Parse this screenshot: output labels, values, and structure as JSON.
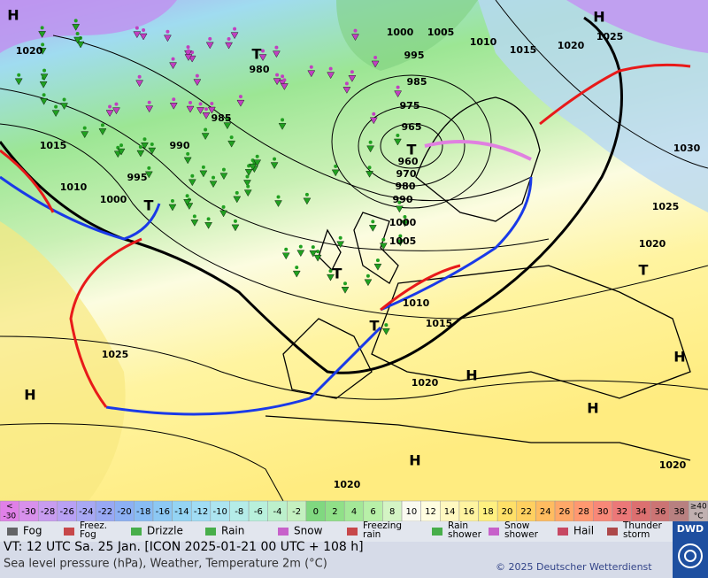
{
  "map": {
    "labels": [
      "H",
      "1020",
      "1015",
      "1010",
      "1000",
      "995",
      "990",
      "985",
      "980",
      "T",
      "1000",
      "1005",
      "995",
      "985",
      "975",
      "965",
      "T",
      "960",
      "970",
      "980",
      "990",
      "1000",
      "1005",
      "1010",
      "1015",
      "1010",
      "1015",
      "1020",
      "1025",
      "H",
      "1030",
      "1025",
      "1020",
      "T",
      "T",
      "T",
      "T",
      "1025",
      "H",
      "1020",
      "H",
      "H",
      "H",
      "H",
      "1020",
      "1020"
    ]
  },
  "color_scale": {
    "cells": [
      {
        "top": "<",
        "label": "-30",
        "color": "#e080e8"
      },
      {
        "label": "-30",
        "color": "#d890ec"
      },
      {
        "label": "-28",
        "color": "#c89cf0"
      },
      {
        "label": "-26",
        "color": "#b8a0f4"
      },
      {
        "label": "-24",
        "color": "#a8a8f4"
      },
      {
        "label": "-22",
        "color": "#98a8f4"
      },
      {
        "label": "-20",
        "color": "#8cb0f4"
      },
      {
        "label": "-18",
        "color": "#88bcf4"
      },
      {
        "label": "-16",
        "color": "#8cc8f4"
      },
      {
        "label": "-14",
        "color": "#94d4f4"
      },
      {
        "label": "-12",
        "color": "#a0dcf4"
      },
      {
        "label": "-10",
        "color": "#ace4f0"
      },
      {
        "label": "-8",
        "color": "#b4ece8"
      },
      {
        "label": "-6",
        "color": "#b8f0dc"
      },
      {
        "label": "-4",
        "color": "#bcf0cc"
      },
      {
        "label": "-2",
        "color": "#c4f0c0"
      },
      {
        "label": "0",
        "color": "#80d880"
      },
      {
        "label": "2",
        "color": "#90e088"
      },
      {
        "label": "4",
        "color": "#a4e898"
      },
      {
        "label": "6",
        "color": "#b8f0a8"
      },
      {
        "label": "8",
        "color": "#d4f4c4"
      },
      {
        "label": "10",
        "color": "#fafaf0"
      },
      {
        "label": "12",
        "color": "#fffde0"
      },
      {
        "label": "14",
        "color": "#fff8c0"
      },
      {
        "label": "16",
        "color": "#fff4a0"
      },
      {
        "label": "18",
        "color": "#fff080"
      },
      {
        "label": "20",
        "color": "#ffe068"
      },
      {
        "label": "22",
        "color": "#ffd060"
      },
      {
        "label": "24",
        "color": "#ffbc60"
      },
      {
        "label": "26",
        "color": "#ffa868"
      },
      {
        "label": "28",
        "color": "#ff9870"
      },
      {
        "label": "30",
        "color": "#f88878"
      },
      {
        "label": "32",
        "color": "#ec7878"
      },
      {
        "label": "34",
        "color": "#dc7070"
      },
      {
        "label": "36",
        "color": "#cc7474"
      },
      {
        "label": "38",
        "color": "#b88080"
      },
      {
        "top": "≥40",
        "label": "°C",
        "color": "#c0b0b0"
      }
    ]
  },
  "legend": [
    {
      "lines": [
        "Fog"
      ]
    },
    {
      "lines": [
        "Freez.",
        "Fog"
      ]
    },
    {
      "lines": [
        "Drizzle"
      ]
    },
    {
      "lines": [
        "Rain"
      ]
    },
    {
      "lines": [
        "Snow"
      ]
    },
    {
      "lines": [
        "Freezing",
        "rain"
      ]
    },
    {
      "lines": [
        "Rain",
        "shower"
      ]
    },
    {
      "lines": [
        "Snow",
        "shower"
      ]
    },
    {
      "lines": [
        "Hail"
      ]
    },
    {
      "lines": [
        "Thunder",
        "storm"
      ]
    }
  ],
  "footer": {
    "valid_time": "VT: 12 UTC Sa.  25 Jan. [ICON 2025-01-21  00 UTC + 108 h]",
    "description": "Sea level pressure (hPa), Weather, Temperature 2m (°C)",
    "copyright": "© 2025 Deutscher Wetterdienst",
    "logo": "DWD"
  }
}
